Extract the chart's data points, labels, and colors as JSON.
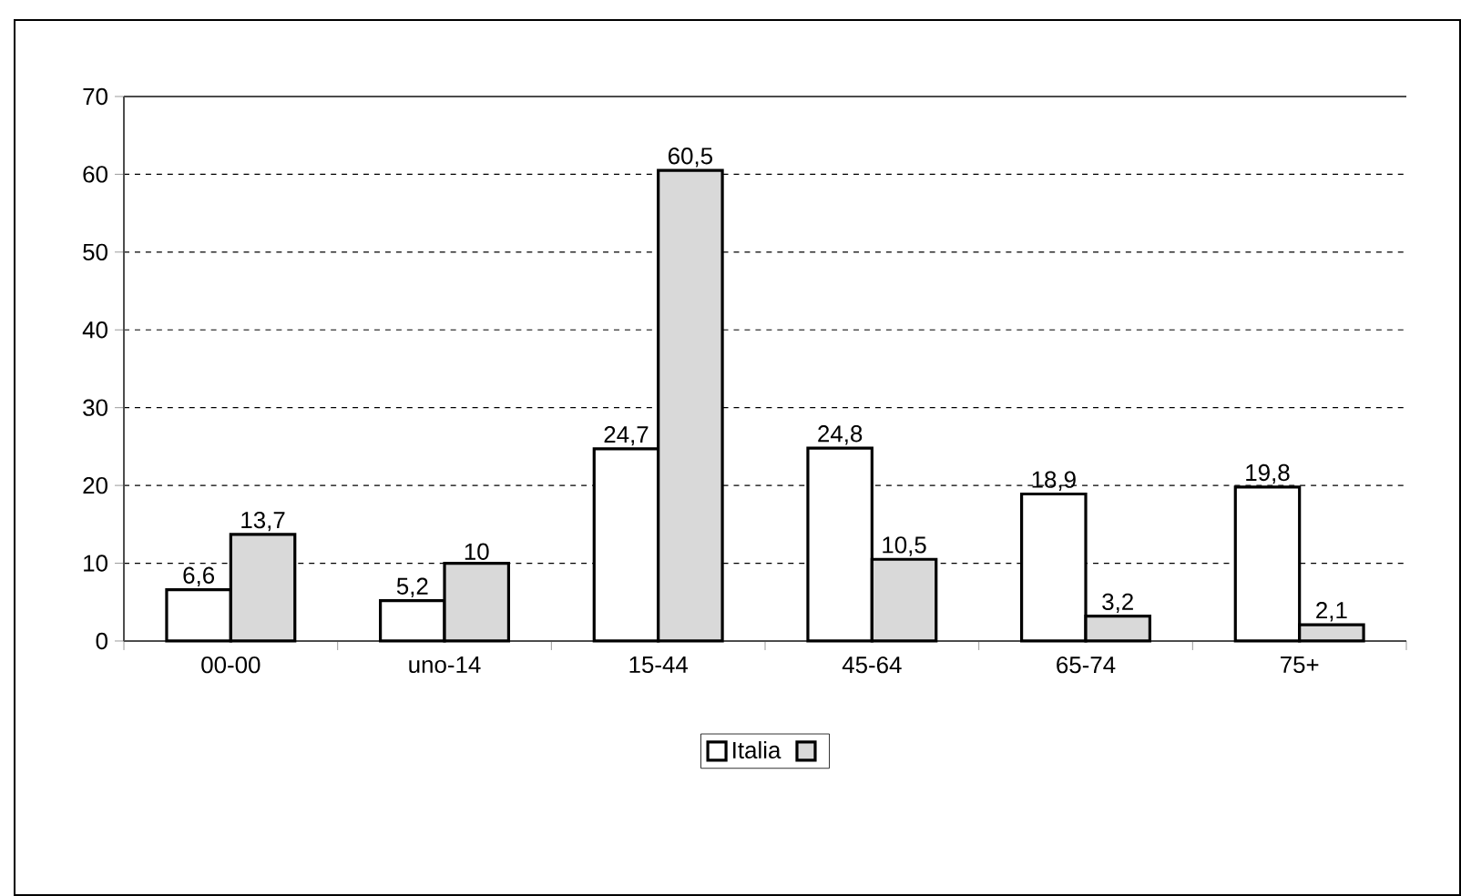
{
  "chart_data": {
    "type": "bar",
    "categories": [
      "00-00",
      "uno-14",
      "15-44",
      "45-64",
      "65-74",
      "75+"
    ],
    "series": [
      {
        "name": "Italia",
        "color": "#ffffff",
        "values": [
          6.6,
          5.2,
          24.7,
          24.8,
          18.9,
          19.8
        ],
        "value_labels": [
          "6,6",
          "5,2",
          "24,7",
          "24,8",
          "18,9",
          "19,8"
        ]
      },
      {
        "color": "#d9d9d9",
        "values": [
          13.7,
          10,
          60.5,
          10.5,
          3.2,
          2.1
        ],
        "value_labels": [
          "13,7",
          "10",
          "60,5",
          "10,5",
          "3,2",
          "2,1"
        ]
      }
    ],
    "ylim": [
      0,
      70
    ],
    "yticks": [
      0,
      10,
      20,
      30,
      40,
      50,
      60,
      70
    ],
    "grid": "y",
    "legend": "bottom"
  }
}
